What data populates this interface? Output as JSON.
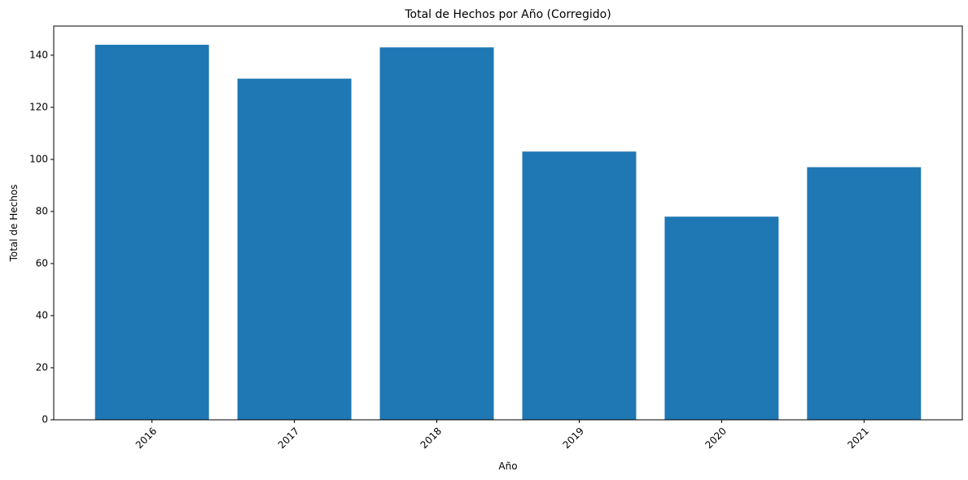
{
  "chart_data": {
    "type": "bar",
    "title": "Total de Hechos por Año (Corregido)",
    "x_label": "Año",
    "y_label": "Total de Hechos",
    "categories": [
      "2016",
      "2017",
      "2018",
      "2019",
      "2020",
      "2021"
    ],
    "values": [
      144,
      131,
      143,
      103,
      78,
      97
    ],
    "color": "#1f77b4",
    "ylim": [
      0,
      151.2
    ],
    "yticks": [
      0,
      20,
      40,
      60,
      80,
      100,
      120,
      140
    ],
    "grid": false
  }
}
